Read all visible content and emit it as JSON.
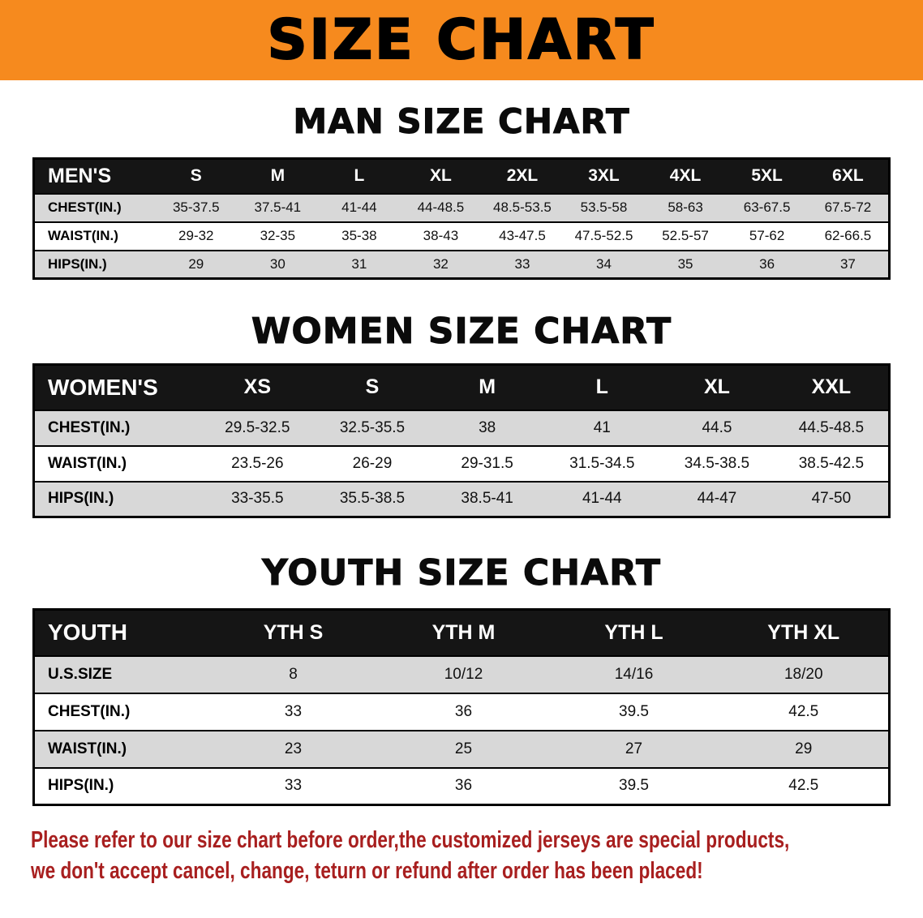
{
  "banner": {
    "title": "SIZE CHART",
    "bg_color": "#f68a1e"
  },
  "chart_data": [
    {
      "type": "table",
      "title": "MAN SIZE CHART",
      "columns": [
        "MEN'S",
        "S",
        "M",
        "L",
        "XL",
        "2XL",
        "3XL",
        "4XL",
        "5XL",
        "6XL"
      ],
      "rows": [
        [
          "CHEST(IN.)",
          "35-37.5",
          "37.5-41",
          "41-44",
          "44-48.5",
          "48.5-53.5",
          "53.5-58",
          "58-63",
          "63-67.5",
          "67.5-72"
        ],
        [
          "WAIST(IN.)",
          "29-32",
          "32-35",
          "35-38",
          "38-43",
          "43-47.5",
          "47.5-52.5",
          "52.5-57",
          "57-62",
          "62-66.5"
        ],
        [
          "HIPS(IN.)",
          "29",
          "30",
          "31",
          "32",
          "33",
          "34",
          "35",
          "36",
          "37"
        ]
      ]
    },
    {
      "type": "table",
      "title": "WOMEN SIZE CHART",
      "columns": [
        "WOMEN'S",
        "XS",
        "S",
        "M",
        "L",
        "XL",
        "XXL"
      ],
      "rows": [
        [
          "CHEST(IN.)",
          "29.5-32.5",
          "32.5-35.5",
          "38",
          "41",
          "44.5",
          "44.5-48.5"
        ],
        [
          "WAIST(IN.)",
          "23.5-26",
          "26-29",
          "29-31.5",
          "31.5-34.5",
          "34.5-38.5",
          "38.5-42.5"
        ],
        [
          "HIPS(IN.)",
          "33-35.5",
          "35.5-38.5",
          "38.5-41",
          "41-44",
          "44-47",
          "47-50"
        ]
      ]
    },
    {
      "type": "table",
      "title": "YOUTH SIZE CHART",
      "columns": [
        "YOUTH",
        "YTH S",
        "YTH M",
        "YTH L",
        "YTH XL"
      ],
      "rows": [
        [
          "U.S.SIZE",
          "8",
          "10/12",
          "14/16",
          "18/20"
        ],
        [
          "CHEST(IN.)",
          "33",
          "36",
          "39.5",
          "42.5"
        ],
        [
          "WAIST(IN.)",
          "23",
          "25",
          "27",
          "29"
        ],
        [
          "HIPS(IN.)",
          "33",
          "36",
          "39.5",
          "42.5"
        ]
      ]
    }
  ],
  "footer": {
    "line1": "Please refer to our size chart before order,the customized jerseys are special products,",
    "line2": "we don't accept cancel, change, teturn or refund after order has been placed!",
    "color": "#a81f1f"
  },
  "colors": {
    "banner_orange": "#f68a1e",
    "table_header_bg": "#151515",
    "stripe_gray": "#d8d8d8"
  }
}
